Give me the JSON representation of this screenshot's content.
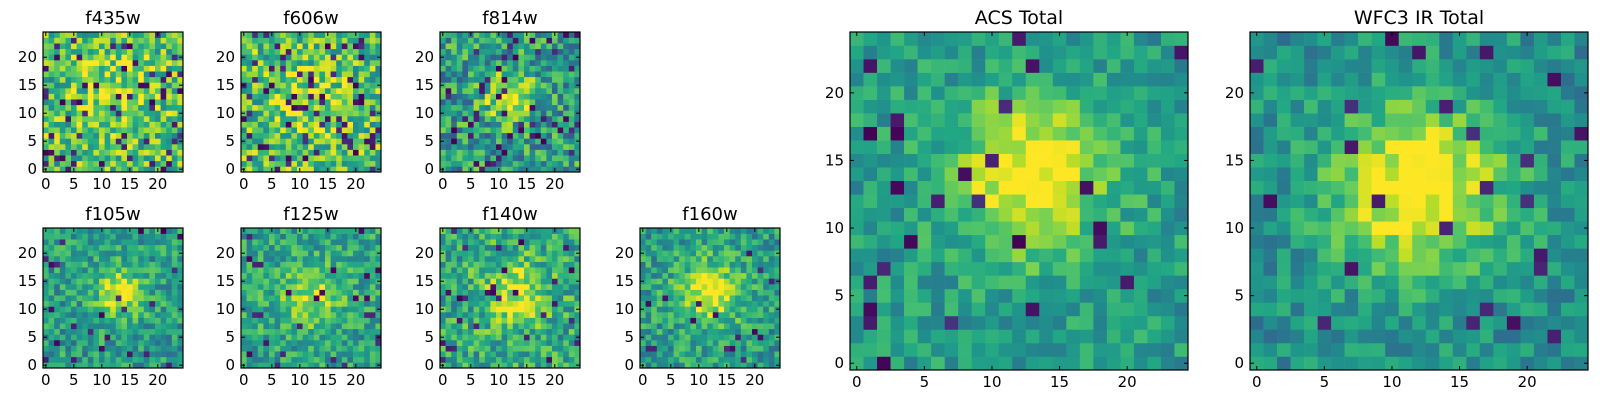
{
  "chart_data": [
    {
      "type": "heatmap",
      "title": "f435w",
      "xticks": [
        "0",
        "5",
        "10",
        "15",
        "20"
      ],
      "yticks": [
        "0",
        "5",
        "10",
        "15",
        "20"
      ],
      "grid_size": [
        25,
        25
      ],
      "xlim": [
        0,
        24
      ],
      "ylim": [
        0,
        24
      ],
      "colormap": "viridis",
      "peak": [
        13,
        14
      ],
      "description_values": "noise-dominated"
    },
    {
      "type": "heatmap",
      "title": "f606w",
      "xticks": [
        "0",
        "5",
        "10",
        "15",
        "20"
      ],
      "yticks": [
        "0",
        "5",
        "10",
        "15",
        "20"
      ],
      "grid_size": [
        25,
        25
      ],
      "xlim": [
        0,
        24
      ],
      "ylim": [
        0,
        24
      ],
      "colormap": "viridis",
      "peak": [
        12,
        12
      ]
    },
    {
      "type": "heatmap",
      "title": "f814w",
      "xticks": [
        "0",
        "5",
        "10",
        "15",
        "20"
      ],
      "yticks": [
        "0",
        "5",
        "10",
        "15",
        "20"
      ],
      "grid_size": [
        25,
        25
      ],
      "xlim": [
        0,
        24
      ],
      "ylim": [
        0,
        24
      ],
      "colormap": "viridis",
      "peak": [
        12,
        13
      ]
    },
    {
      "type": "heatmap",
      "title": "f105w",
      "xticks": [
        "0",
        "5",
        "10",
        "15",
        "20"
      ],
      "yticks": [
        "0",
        "5",
        "10",
        "15",
        "20"
      ],
      "grid_size": [
        25,
        25
      ],
      "xlim": [
        0,
        24
      ],
      "ylim": [
        0,
        24
      ],
      "colormap": "viridis",
      "peak": [
        13,
        13
      ]
    },
    {
      "type": "heatmap",
      "title": "f125w",
      "xticks": [
        "0",
        "5",
        "10",
        "15",
        "20"
      ],
      "yticks": [
        "0",
        "5",
        "10",
        "15",
        "20"
      ],
      "grid_size": [
        25,
        25
      ],
      "xlim": [
        0,
        24
      ],
      "ylim": [
        0,
        24
      ],
      "colormap": "viridis",
      "peak": [
        12,
        12
      ]
    },
    {
      "type": "heatmap",
      "title": "f140w",
      "xticks": [
        "0",
        "5",
        "10",
        "15",
        "20"
      ],
      "yticks": [
        "0",
        "5",
        "10",
        "15",
        "20"
      ],
      "grid_size": [
        25,
        25
      ],
      "xlim": [
        0,
        24
      ],
      "ylim": [
        0,
        24
      ],
      "colormap": "viridis",
      "peak": [
        13,
        13
      ]
    },
    {
      "type": "heatmap",
      "title": "f160w",
      "xticks": [
        "0",
        "5",
        "10",
        "15",
        "20"
      ],
      "yticks": [
        "0",
        "5",
        "10",
        "15",
        "20"
      ],
      "grid_size": [
        25,
        25
      ],
      "xlim": [
        0,
        24
      ],
      "ylim": [
        0,
        24
      ],
      "colormap": "viridis",
      "peak": [
        12,
        13
      ]
    },
    {
      "type": "heatmap",
      "title": "ACS Total",
      "xticks": [
        "0",
        "5",
        "10",
        "15",
        "20"
      ],
      "yticks": [
        "0",
        "5",
        "10",
        "15",
        "20"
      ],
      "grid_size": [
        25,
        25
      ],
      "xlim": [
        0,
        24
      ],
      "ylim": [
        0,
        24
      ],
      "colormap": "viridis",
      "peak": [
        13,
        14
      ]
    },
    {
      "type": "heatmap",
      "title": "WFC3 IR Total",
      "xticks": [
        "0",
        "5",
        "10",
        "15",
        "20"
      ],
      "yticks": [
        "0",
        "5",
        "10",
        "15",
        "20"
      ],
      "grid_size": [
        25,
        25
      ],
      "xlim": [
        0,
        24
      ],
      "ylim": [
        0,
        24
      ],
      "colormap": "viridis",
      "peak": [
        12,
        13
      ]
    }
  ]
}
